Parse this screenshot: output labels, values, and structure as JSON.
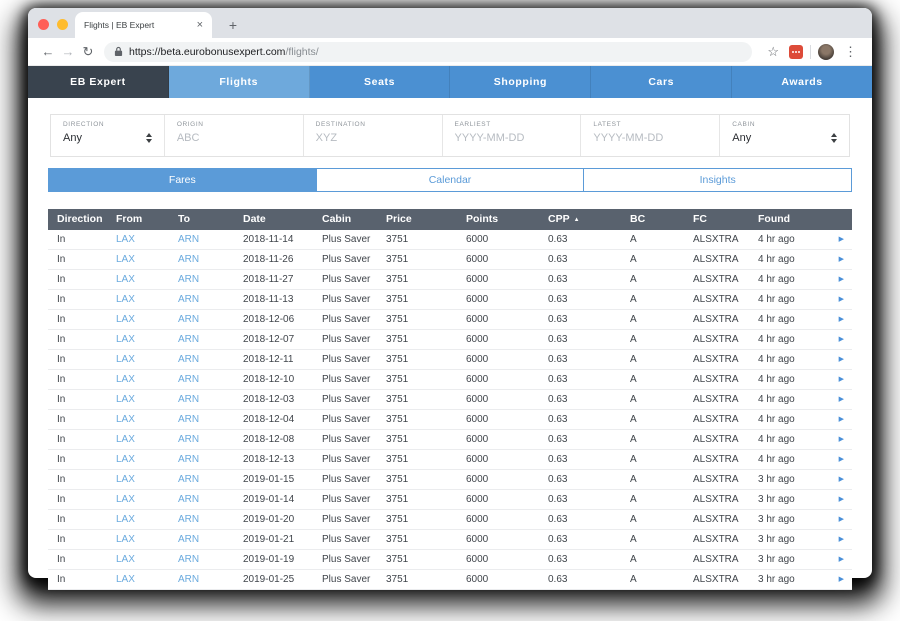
{
  "browser": {
    "tab_title": "Flights | EB Expert",
    "close_tab_glyph": "×",
    "new_tab_glyph": "+",
    "back_glyph": "←",
    "forward_glyph": "→",
    "refresh_glyph": "↻",
    "url_host": "https://beta.eurobonusexpert.com",
    "url_path": "/flights/",
    "bookmark_glyph": "☆",
    "menu_glyph": "⋮"
  },
  "nav": {
    "items": [
      {
        "label": "EB Expert",
        "type": "brand"
      },
      {
        "label": "Flights",
        "type": "active"
      },
      {
        "label": "Seats",
        "type": "normal"
      },
      {
        "label": "Shopping",
        "type": "normal"
      },
      {
        "label": "Cars",
        "type": "normal"
      },
      {
        "label": "Awards",
        "type": "normal"
      }
    ]
  },
  "filters": {
    "fields": [
      {
        "label": "DIRECTION",
        "kind": "select",
        "value": "Any",
        "size": "dir"
      },
      {
        "label": "ORIGIN",
        "kind": "text",
        "placeholder": "ABC",
        "size": "std"
      },
      {
        "label": "DESTINATION",
        "kind": "text",
        "placeholder": "XYZ",
        "size": "std"
      },
      {
        "label": "EARLIEST",
        "kind": "text",
        "placeholder": "YYYY-MM-DD",
        "size": "std"
      },
      {
        "label": "LATEST",
        "kind": "text",
        "placeholder": "YYYY-MM-DD",
        "size": "std"
      },
      {
        "label": "CABIN",
        "kind": "select",
        "value": "Any",
        "size": "cab"
      }
    ]
  },
  "view_tabs": [
    {
      "label": "Fares",
      "active": true
    },
    {
      "label": "Calendar",
      "active": false
    },
    {
      "label": "Insights",
      "active": false
    }
  ],
  "table": {
    "columns": [
      "Direction",
      "From",
      "To",
      "Date",
      "Cabin",
      "Price",
      "Points",
      "CPP",
      "BC",
      "FC",
      "Found"
    ],
    "sort_column": "CPP",
    "sort_glyph": "▲",
    "row_chevron_glyph": "▶",
    "rows": [
      {
        "direction": "In",
        "from": "LAX",
        "to": "ARN",
        "date": "2018-11-14",
        "cabin": "Plus Saver",
        "price": "3751",
        "points": "6000",
        "cpp": "0.63",
        "bc": "A",
        "fc": "ALSXTRA",
        "found": "4 hr ago"
      },
      {
        "direction": "In",
        "from": "LAX",
        "to": "ARN",
        "date": "2018-11-26",
        "cabin": "Plus Saver",
        "price": "3751",
        "points": "6000",
        "cpp": "0.63",
        "bc": "A",
        "fc": "ALSXTRA",
        "found": "4 hr ago"
      },
      {
        "direction": "In",
        "from": "LAX",
        "to": "ARN",
        "date": "2018-11-27",
        "cabin": "Plus Saver",
        "price": "3751",
        "points": "6000",
        "cpp": "0.63",
        "bc": "A",
        "fc": "ALSXTRA",
        "found": "4 hr ago"
      },
      {
        "direction": "In",
        "from": "LAX",
        "to": "ARN",
        "date": "2018-11-13",
        "cabin": "Plus Saver",
        "price": "3751",
        "points": "6000",
        "cpp": "0.63",
        "bc": "A",
        "fc": "ALSXTRA",
        "found": "4 hr ago"
      },
      {
        "direction": "In",
        "from": "LAX",
        "to": "ARN",
        "date": "2018-12-06",
        "cabin": "Plus Saver",
        "price": "3751",
        "points": "6000",
        "cpp": "0.63",
        "bc": "A",
        "fc": "ALSXTRA",
        "found": "4 hr ago"
      },
      {
        "direction": "In",
        "from": "LAX",
        "to": "ARN",
        "date": "2018-12-07",
        "cabin": "Plus Saver",
        "price": "3751",
        "points": "6000",
        "cpp": "0.63",
        "bc": "A",
        "fc": "ALSXTRA",
        "found": "4 hr ago"
      },
      {
        "direction": "In",
        "from": "LAX",
        "to": "ARN",
        "date": "2018-12-11",
        "cabin": "Plus Saver",
        "price": "3751",
        "points": "6000",
        "cpp": "0.63",
        "bc": "A",
        "fc": "ALSXTRA",
        "found": "4 hr ago"
      },
      {
        "direction": "In",
        "from": "LAX",
        "to": "ARN",
        "date": "2018-12-10",
        "cabin": "Plus Saver",
        "price": "3751",
        "points": "6000",
        "cpp": "0.63",
        "bc": "A",
        "fc": "ALSXTRA",
        "found": "4 hr ago"
      },
      {
        "direction": "In",
        "from": "LAX",
        "to": "ARN",
        "date": "2018-12-03",
        "cabin": "Plus Saver",
        "price": "3751",
        "points": "6000",
        "cpp": "0.63",
        "bc": "A",
        "fc": "ALSXTRA",
        "found": "4 hr ago"
      },
      {
        "direction": "In",
        "from": "LAX",
        "to": "ARN",
        "date": "2018-12-04",
        "cabin": "Plus Saver",
        "price": "3751",
        "points": "6000",
        "cpp": "0.63",
        "bc": "A",
        "fc": "ALSXTRA",
        "found": "4 hr ago"
      },
      {
        "direction": "In",
        "from": "LAX",
        "to": "ARN",
        "date": "2018-12-08",
        "cabin": "Plus Saver",
        "price": "3751",
        "points": "6000",
        "cpp": "0.63",
        "bc": "A",
        "fc": "ALSXTRA",
        "found": "4 hr ago"
      },
      {
        "direction": "In",
        "from": "LAX",
        "to": "ARN",
        "date": "2018-12-13",
        "cabin": "Plus Saver",
        "price": "3751",
        "points": "6000",
        "cpp": "0.63",
        "bc": "A",
        "fc": "ALSXTRA",
        "found": "4 hr ago"
      },
      {
        "direction": "In",
        "from": "LAX",
        "to": "ARN",
        "date": "2019-01-15",
        "cabin": "Plus Saver",
        "price": "3751",
        "points": "6000",
        "cpp": "0.63",
        "bc": "A",
        "fc": "ALSXTRA",
        "found": "3 hr ago"
      },
      {
        "direction": "In",
        "from": "LAX",
        "to": "ARN",
        "date": "2019-01-14",
        "cabin": "Plus Saver",
        "price": "3751",
        "points": "6000",
        "cpp": "0.63",
        "bc": "A",
        "fc": "ALSXTRA",
        "found": "3 hr ago"
      },
      {
        "direction": "In",
        "from": "LAX",
        "to": "ARN",
        "date": "2019-01-20",
        "cabin": "Plus Saver",
        "price": "3751",
        "points": "6000",
        "cpp": "0.63",
        "bc": "A",
        "fc": "ALSXTRA",
        "found": "3 hr ago"
      },
      {
        "direction": "In",
        "from": "LAX",
        "to": "ARN",
        "date": "2019-01-21",
        "cabin": "Plus Saver",
        "price": "3751",
        "points": "6000",
        "cpp": "0.63",
        "bc": "A",
        "fc": "ALSXTRA",
        "found": "3 hr ago"
      },
      {
        "direction": "In",
        "from": "LAX",
        "to": "ARN",
        "date": "2019-01-19",
        "cabin": "Plus Saver",
        "price": "3751",
        "points": "6000",
        "cpp": "0.63",
        "bc": "A",
        "fc": "ALSXTRA",
        "found": "3 hr ago"
      },
      {
        "direction": "In",
        "from": "LAX",
        "to": "ARN",
        "date": "2019-01-25",
        "cabin": "Plus Saver",
        "price": "3751",
        "points": "6000",
        "cpp": "0.63",
        "bc": "A",
        "fc": "ALSXTRA",
        "found": "3 hr ago"
      }
    ]
  },
  "colors": {
    "nav_blue": "#4b90d2",
    "nav_blue_active": "#6ea9dc",
    "nav_dark": "#39434e",
    "accent_blue": "#5b9bd8",
    "link_blue": "#6aaade",
    "table_header_bg": "#59626e",
    "extension_red": "#dd4b39",
    "tabstrip_gray": "#dee1e6"
  }
}
